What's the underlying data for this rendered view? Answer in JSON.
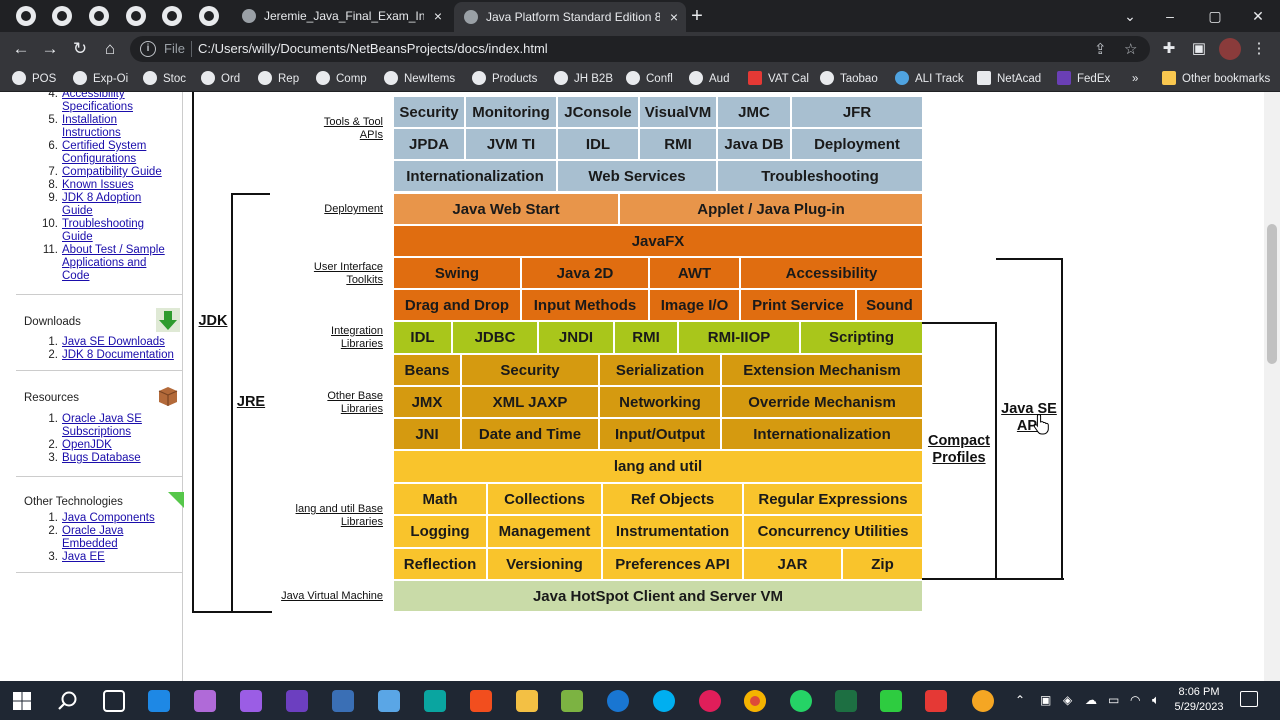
{
  "browser": {
    "tabs": [
      {
        "title": "Jeremie_Java_Final_Exam_Instruct",
        "close": "×"
      },
      {
        "title": "Java Platform Standard Edition 8",
        "close": "×"
      }
    ],
    "new_tab": "+",
    "window_buttons": {
      "minimize": "–",
      "maximize": "▢",
      "close": "✕",
      "collapse": "⌄"
    },
    "address": {
      "scheme_label": "File",
      "url": "C:/Users/willy/Documents/NetBeansProjects/docs/index.html"
    },
    "bookmarks": [
      "POS",
      "Exp-Oi",
      "Stoc",
      "Ord",
      "Rep",
      "Comp",
      "NewItems",
      "Products",
      "JH B2B",
      "Confl",
      "Aud",
      "VAT Cal",
      "Taobao",
      "ALI Track",
      "NetAcad",
      "FedEx"
    ],
    "bookmarks_overflow": "»",
    "other_bookmarks": "Other bookmarks"
  },
  "sidebar": {
    "top_items": [
      {
        "num": "4.",
        "lines": [
          "Accessibility",
          "Specifications"
        ]
      },
      {
        "num": "5.",
        "lines": [
          "Installation",
          "Instructions"
        ]
      },
      {
        "num": "6.",
        "lines": [
          "Certified System",
          "Configurations"
        ]
      },
      {
        "num": "7.",
        "lines": [
          "Compatibility Guide"
        ]
      },
      {
        "num": "8.",
        "lines": [
          "Known Issues"
        ]
      },
      {
        "num": "9.",
        "lines": [
          "JDK 8 Adoption",
          "Guide"
        ]
      },
      {
        "num": "10.",
        "lines": [
          "Troubleshooting",
          "Guide"
        ]
      },
      {
        "num": "11.",
        "lines": [
          "About Test / Sample",
          "Applications and",
          "Code"
        ]
      }
    ],
    "downloads": {
      "heading": "Downloads",
      "items": [
        {
          "num": "1.",
          "label": "Java SE Downloads"
        },
        {
          "num": "2.",
          "label": "JDK 8 Documentation"
        }
      ]
    },
    "resources": {
      "heading": "Resources",
      "items": [
        {
          "num": "1.",
          "lines": [
            "Oracle Java SE",
            "Subscriptions"
          ]
        },
        {
          "num": "2.",
          "lines": [
            "OpenJDK"
          ]
        },
        {
          "num": "3.",
          "lines": [
            "Bugs Database"
          ]
        }
      ]
    },
    "other_tech": {
      "heading": "Other Technologies",
      "items": [
        {
          "num": "1.",
          "lines": [
            "Java Components"
          ]
        },
        {
          "num": "2.",
          "lines": [
            "Oracle Java",
            "Embedded"
          ]
        },
        {
          "num": "3.",
          "lines": [
            "Java EE"
          ]
        }
      ]
    }
  },
  "diagram": {
    "brace_labels": {
      "jdk": "JDK",
      "jre": "JRE",
      "compact": "Compact Profiles",
      "java_se_api": "Java SE API"
    },
    "row_labels": {
      "tools": "Tools & Tool APIs",
      "deployment": "Deployment",
      "ui": "User Interface Toolkits",
      "integration": "Integration Libraries",
      "other_base": "Other Base Libraries",
      "lang_util_base": "lang and util Base Libraries",
      "jvm": "Java Virtual Machine"
    },
    "tools": {
      "row1": [
        "Security",
        "Monitoring",
        "JConsole",
        "VisualVM",
        "JMC",
        "JFR"
      ],
      "row2": [
        "JPDA",
        "JVM TI",
        "IDL",
        "RMI",
        "Java DB",
        "Deployment"
      ],
      "row3": [
        "Internationalization",
        "Web Services",
        "Troubleshooting"
      ]
    },
    "deployment": [
      "Java Web Start",
      "Applet / Java Plug-in"
    ],
    "javafx": "JavaFX",
    "ui": {
      "row1": [
        "Swing",
        "Java 2D",
        "AWT",
        "Accessibility"
      ],
      "row2": [
        "Drag and Drop",
        "Input Methods",
        "Image I/O",
        "Print Service",
        "Sound"
      ]
    },
    "integration": [
      "IDL",
      "JDBC",
      "JNDI",
      "RMI",
      "RMI-IIOP",
      "Scripting"
    ],
    "other_base": {
      "row1": [
        "Beans",
        "Security",
        "Serialization",
        "Extension Mechanism"
      ],
      "row2": [
        "JMX",
        "XML JAXP",
        "Networking",
        "Override Mechanism"
      ],
      "row3": [
        "JNI",
        "Date and Time",
        "Input/Output",
        "Internationalization"
      ]
    },
    "lang_util": "lang and util",
    "lang_base": {
      "row1": [
        "Math",
        "Collections",
        "Ref Objects",
        "Regular Expressions"
      ],
      "row2": [
        "Logging",
        "Management",
        "Instrumentation",
        "Concurrency Utilities"
      ],
      "row3": [
        "Reflection",
        "Versioning",
        "Preferences API",
        "JAR",
        "Zip"
      ]
    },
    "jvm": "Java HotSpot Client and Server VM"
  },
  "taskbar": {
    "time": "8:06 PM",
    "date": "5/29/2023"
  }
}
